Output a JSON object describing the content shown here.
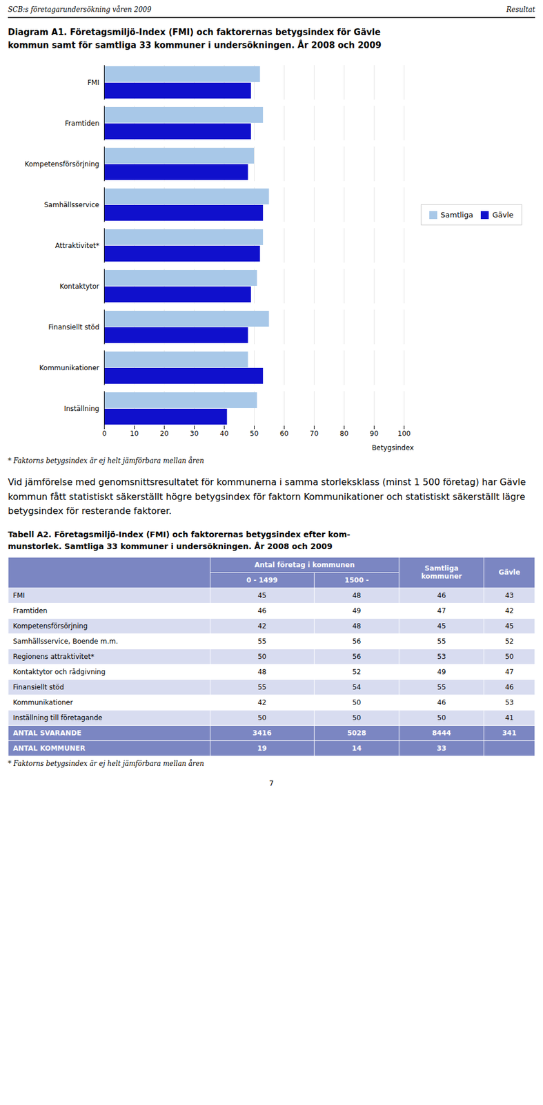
{
  "chart_data": {
    "type": "bar",
    "orientation": "horizontal",
    "title": "Diagram A1. Företagsmiljö-Index (FMI) och faktorernas betygsindex för Gävle\nkommun samt för samtliga 33 kommuner i undersökningen. År 2008 och 2009",
    "xlabel": "Betygsindex",
    "categories": [
      "FMI",
      "Framtiden",
      "Kompetensförsörjning",
      "Samhällsservice",
      "Attraktivitet*",
      "Kontaktytor",
      "Finansiellt stöd",
      "Kommunikationer",
      "Inställning"
    ],
    "series": [
      {
        "name": "Samtliga",
        "color": "#A8C8E8",
        "values": [
          52,
          53,
          50,
          55,
          53,
          51,
          55,
          48,
          51
        ]
      },
      {
        "name": "Gävle",
        "color": "#1010CC",
        "values": [
          49,
          49,
          48,
          53,
          52,
          49,
          48,
          53,
          41
        ]
      }
    ],
    "xlim": [
      0,
      100
    ],
    "xticks": [
      0,
      10,
      20,
      30,
      40,
      50,
      60,
      70,
      80,
      90,
      100
    ],
    "grid": true,
    "legend": "right",
    "annotations": [
      "SCB:s företagarundersökning våren 2009",
      "Resultat",
      "* Faktorns betygsindex är ej helt jämförbara mellan åren",
      "Vid jämförelse med genomsnittsresultatet för kommunerna i samma storleksklass (minst 1 500 företag) har Gävle kommun fått statistiskt säkerställt högre betygsindex för faktorn Kommunikationer och statistiskt säkerställt lägre betygsindex för resterande faktorer.",
      "7"
    ]
  },
  "table": {
    "title": "Tabell A2. Företagsmiljö-Index (FMI) och faktorernas betygsindex efter kom-\nmunstorlek. Samtliga 33 kommuner i undersökningen. År 2008 och 2009",
    "column_groups": [
      {
        "label": "Antal företag i kommunen",
        "columns": [
          "0 - 1499",
          "1500 -"
        ]
      },
      {
        "label": "Samtliga\nkommuner"
      },
      {
        "label": "Gävle"
      }
    ],
    "rows": [
      [
        "FMI",
        "45",
        "48",
        "46",
        "43"
      ],
      [
        "Framtiden",
        "46",
        "49",
        "47",
        "42"
      ],
      [
        "Kompetensförsörjning",
        "42",
        "48",
        "45",
        "45"
      ],
      [
        "Samhällsservice, Boende m.m.",
        "55",
        "56",
        "55",
        "52"
      ],
      [
        "Regionens attraktivitet*",
        "50",
        "56",
        "53",
        "50"
      ],
      [
        "Kontaktytor och rådgivning",
        "48",
        "52",
        "49",
        "47"
      ],
      [
        "Finansiellt stöd",
        "55",
        "54",
        "55",
        "46"
      ],
      [
        "Kommunikationer",
        "42",
        "50",
        "46",
        "53"
      ],
      [
        "Inställning till företagande",
        "50",
        "50",
        "50",
        "41"
      ],
      [
        "ANTAL SVARANDE",
        "3416",
        "5028",
        "8444",
        "341"
      ],
      [
        "ANTAL KOMMUNER",
        "19",
        "14",
        "33",
        null
      ]
    ],
    "footnote": "* Faktorns betygsindex är ej helt jämförbara mellan åren"
  }
}
